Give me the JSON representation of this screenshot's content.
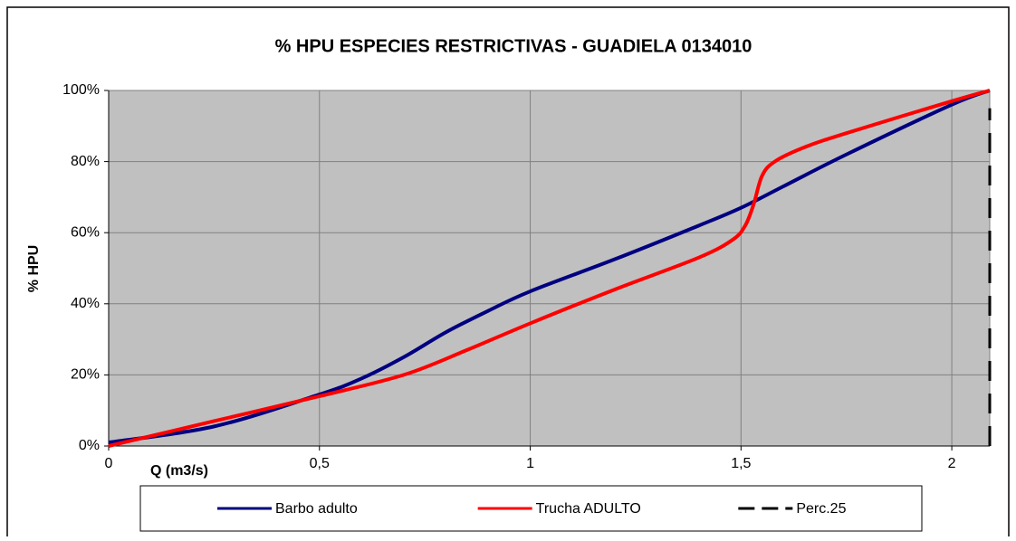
{
  "chart_data": {
    "type": "line",
    "title": "% HPU ESPECIES RESTRICTIVAS - GUADIELA 0134010",
    "xlabel": "Q (m3/s)",
    "ylabel": "% HPU",
    "xlim": [
      0,
      2.09
    ],
    "ylim": [
      0,
      100
    ],
    "xticks": [
      0,
      {
        "value": 0.5,
        "label": "0,5"
      },
      1,
      {
        "value": 1.5,
        "label": "1,5"
      },
      2
    ],
    "yticks": [
      {
        "value": 0,
        "label": "0%"
      },
      {
        "value": 20,
        "label": "20%"
      },
      {
        "value": 40,
        "label": "40%"
      },
      {
        "value": 60,
        "label": "60%"
      },
      {
        "value": 80,
        "label": "80%"
      },
      {
        "value": 100,
        "label": "100%"
      }
    ],
    "grid": true,
    "legend": "bottom",
    "series": [
      {
        "name": "Barbo adulto",
        "color": "#000080",
        "dash": false,
        "x": [
          0,
          0.25,
          0.5,
          0.6,
          0.7,
          0.8,
          0.9,
          1.0,
          1.2,
          1.4,
          1.5,
          1.6,
          1.75,
          2.0,
          2.09
        ],
        "values": [
          1,
          5.5,
          14.5,
          19,
          25,
          32,
          38,
          43.5,
          52.5,
          62,
          67,
          73,
          82,
          96,
          100
        ]
      },
      {
        "name": "Trucha ADULTO",
        "color": "#ff0000",
        "dash": false,
        "x": [
          0,
          0.25,
          0.5,
          0.7,
          0.85,
          1.0,
          1.2,
          1.4,
          1.48,
          1.51,
          1.53,
          1.55,
          1.58,
          1.65,
          1.75,
          2.0,
          2.09
        ],
        "values": [
          0,
          7,
          14,
          20,
          27,
          34.5,
          44,
          53,
          58,
          62,
          68,
          76,
          80,
          84,
          88,
          97,
          100
        ]
      },
      {
        "name": "Perc.25",
        "color": "#000000",
        "dash": true,
        "x": [
          2.09,
          2.09
        ],
        "values": [
          0,
          95
        ]
      }
    ]
  }
}
